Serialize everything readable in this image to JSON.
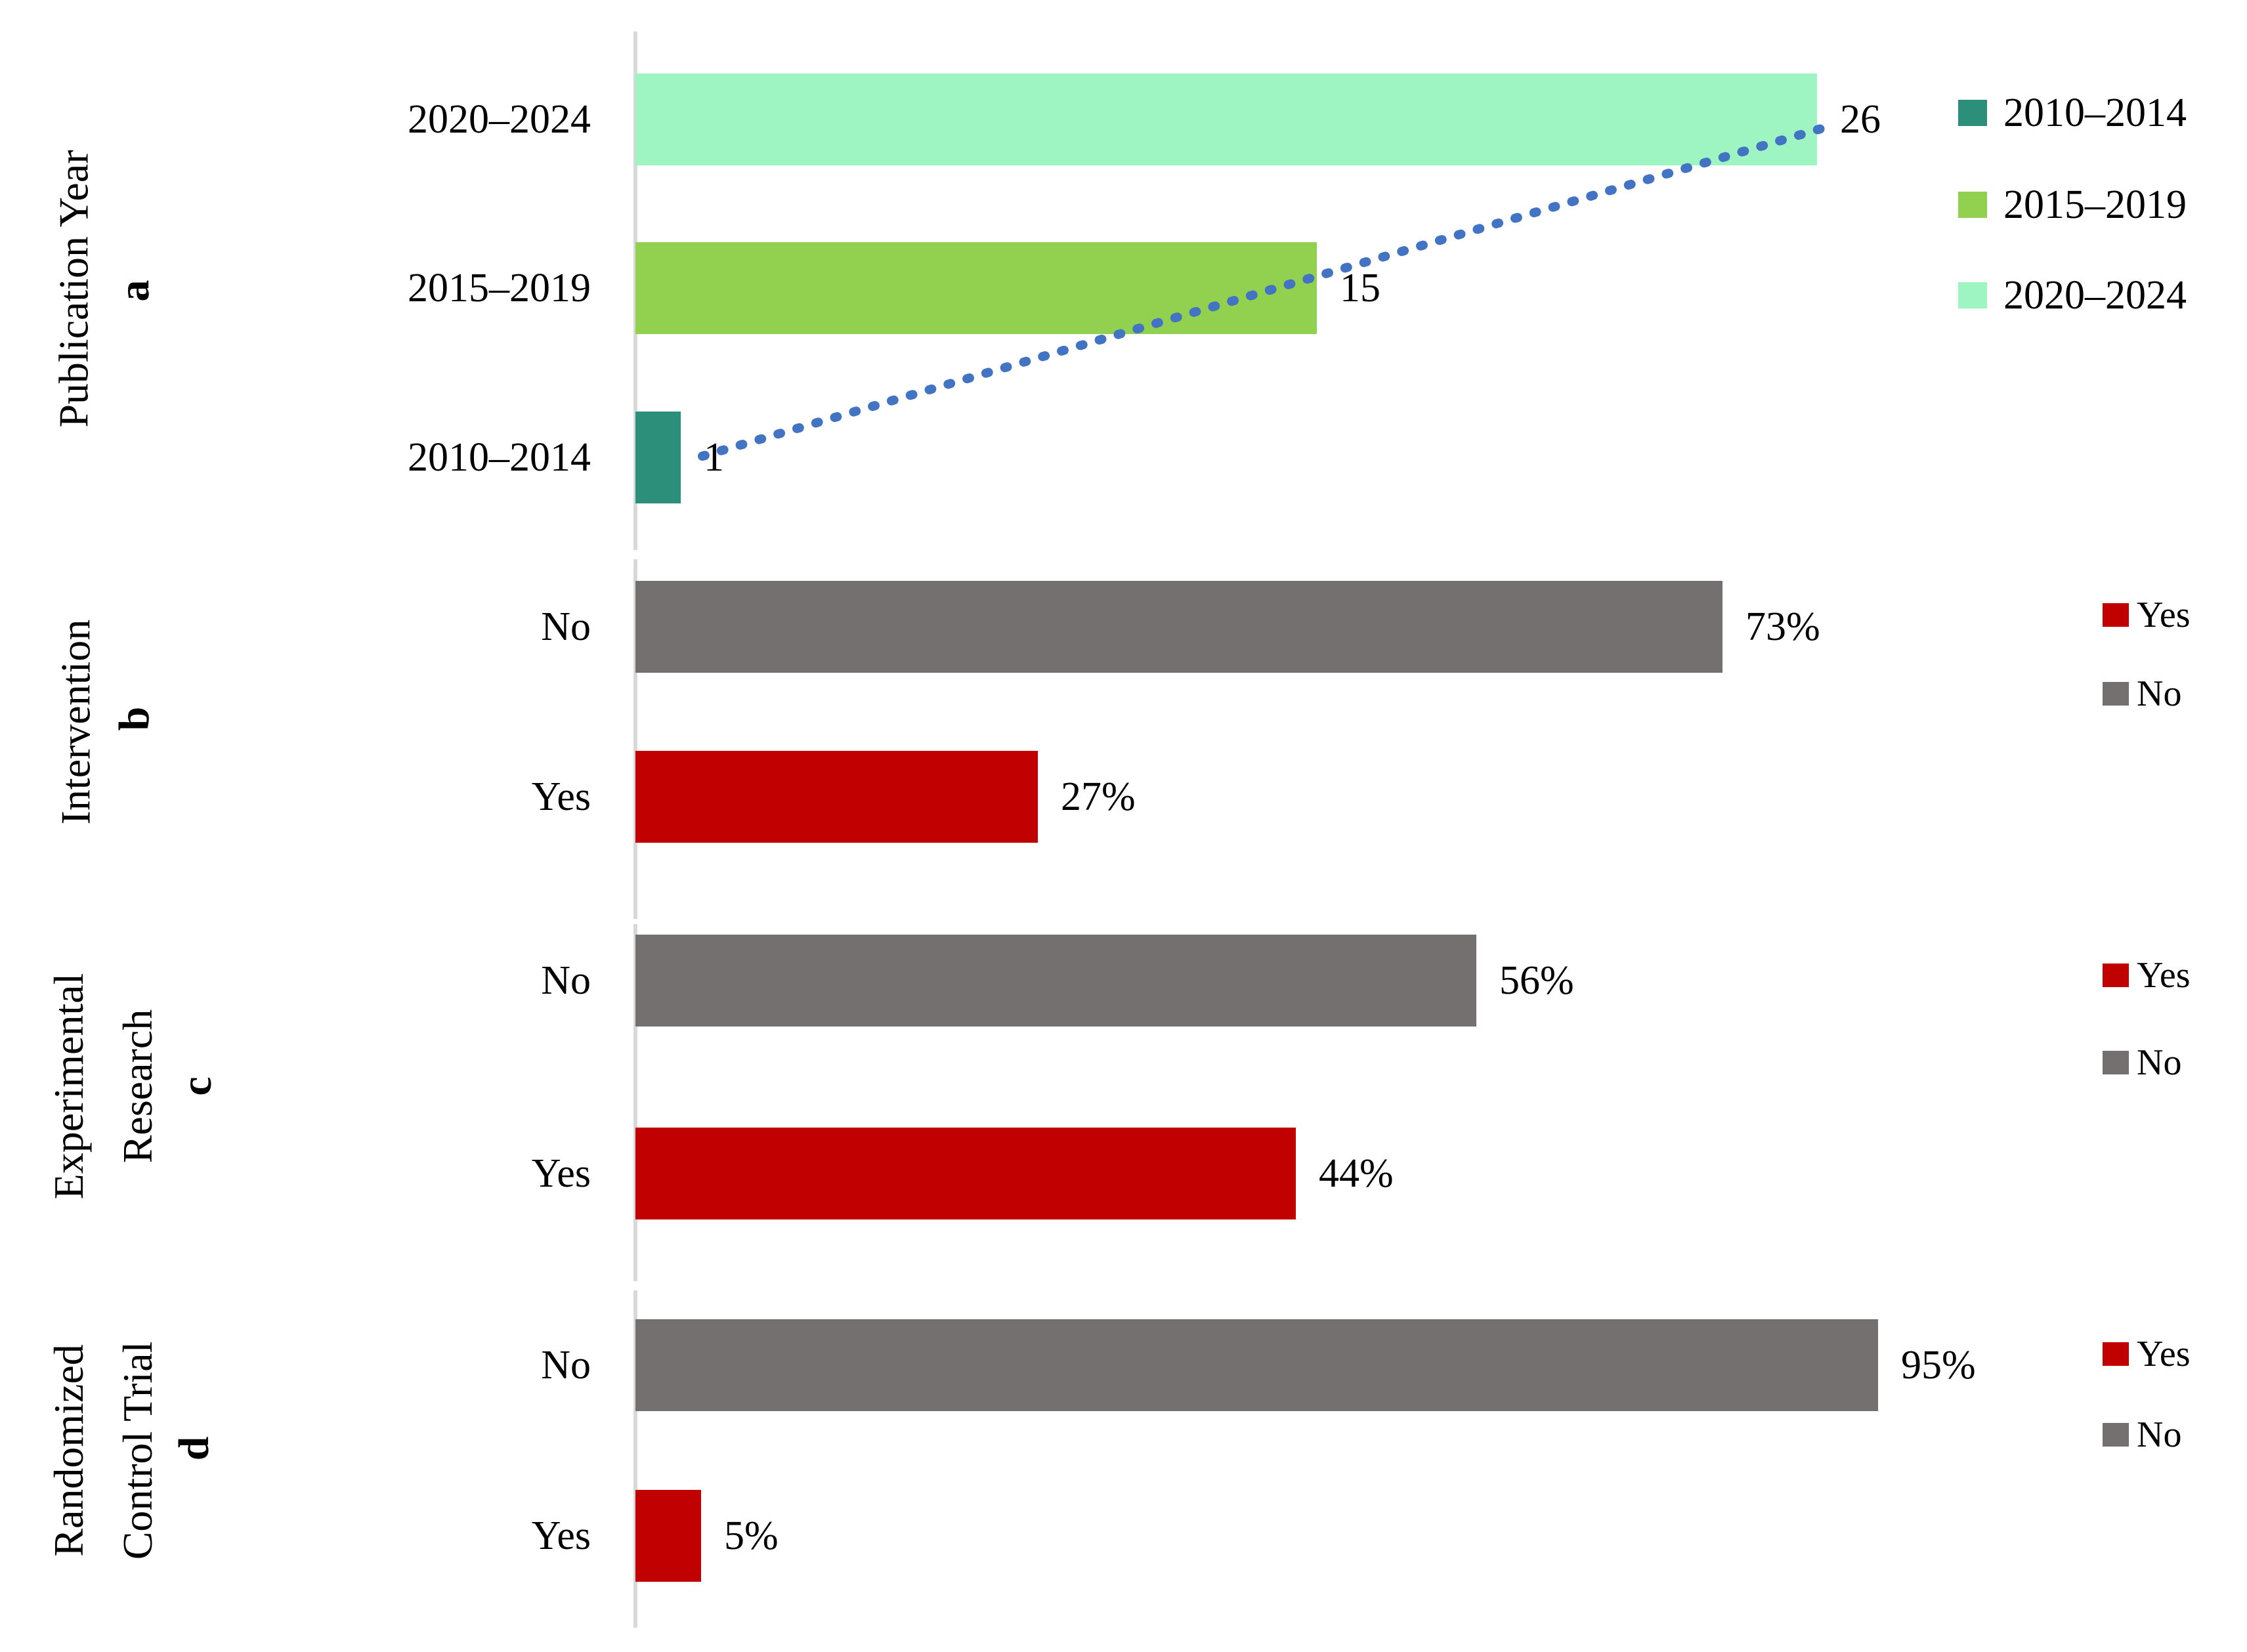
{
  "colors": {
    "teal": "#2C8F7A",
    "green": "#92D050",
    "mint": "#9FF5C2",
    "gray": "#757070",
    "red": "#C10101",
    "trend_blue": "#4374C4",
    "axis_gray": "#D9D9D9",
    "text": "#000000"
  },
  "chart_data": [
    {
      "id": "a",
      "type": "bar",
      "orientation": "horizontal",
      "title": "Publication Year",
      "title_lines": [
        "Publication Year"
      ],
      "panel_letter": "a",
      "categories": [
        "2020–2024",
        "2015–2019",
        "2010–2014"
      ],
      "values": [
        26,
        15,
        1
      ],
      "value_labels": [
        "26",
        "15",
        "1"
      ],
      "bar_colors": [
        "mint",
        "green",
        "teal"
      ],
      "xlim": [
        0,
        26
      ],
      "grid": false,
      "legend_position": "right",
      "legend": {
        "entries": [
          {
            "label": "2010–2014",
            "color": "teal"
          },
          {
            "label": "2015–2019",
            "color": "green"
          },
          {
            "label": "2020–2024",
            "color": "mint"
          }
        ]
      },
      "trend_line": {
        "style": "dotted",
        "color": "trend_blue",
        "from": {
          "category": "2010–2014",
          "value": 1
        },
        "to": {
          "category": "2020–2024",
          "value": 26
        }
      }
    },
    {
      "id": "b",
      "type": "bar",
      "orientation": "horizontal",
      "title": "Intervention",
      "title_lines": [
        "Intervention"
      ],
      "panel_letter": "b",
      "categories": [
        "No",
        "Yes"
      ],
      "values": [
        73,
        27
      ],
      "value_labels": [
        "73%",
        "27%"
      ],
      "bar_colors": [
        "gray",
        "red"
      ],
      "xlim": [
        0,
        80
      ],
      "grid": false,
      "legend_position": "right",
      "legend": {
        "entries": [
          {
            "label": "Yes",
            "color": "red"
          },
          {
            "label": "No",
            "color": "gray"
          }
        ]
      }
    },
    {
      "id": "c",
      "type": "bar",
      "orientation": "horizontal",
      "title": "Experimental Research",
      "title_lines": [
        "Experimental",
        "Research"
      ],
      "panel_letter": "c",
      "categories": [
        "No",
        "Yes"
      ],
      "values": [
        56,
        44
      ],
      "value_labels": [
        "56%",
        "44%"
      ],
      "bar_colors": [
        "gray",
        "red"
      ],
      "xlim": [
        0,
        60
      ],
      "grid": false,
      "legend_position": "right",
      "legend": {
        "entries": [
          {
            "label": "Yes",
            "color": "red"
          },
          {
            "label": "No",
            "color": "gray"
          }
        ]
      }
    },
    {
      "id": "d",
      "type": "bar",
      "orientation": "horizontal",
      "title": "Randomized Control Trial",
      "title_lines": [
        "Randomized",
        "Control Trial"
      ],
      "panel_letter": "d",
      "categories": [
        "No",
        "Yes"
      ],
      "values": [
        95,
        5
      ],
      "value_labels": [
        "95%",
        "5%"
      ],
      "bar_colors": [
        "gray",
        "red"
      ],
      "xlim": [
        0,
        100
      ],
      "grid": false,
      "legend_position": "right",
      "legend": {
        "entries": [
          {
            "label": "Yes",
            "color": "red"
          },
          {
            "label": "No",
            "color": "gray"
          }
        ]
      }
    }
  ]
}
